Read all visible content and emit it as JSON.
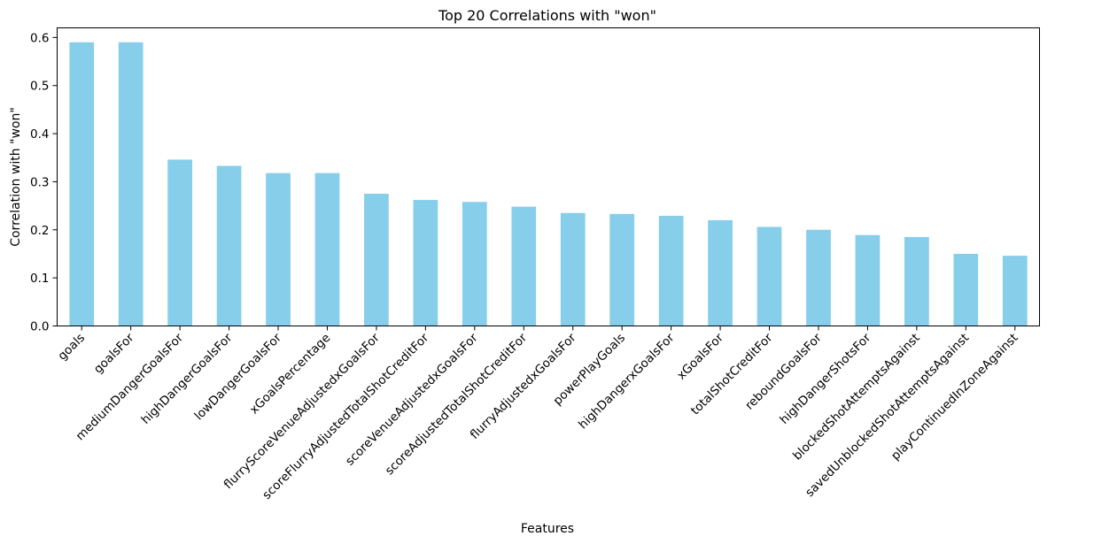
{
  "chart_data": {
    "type": "bar",
    "title": "Top 20 Correlations with \"won\"",
    "xlabel": "Features",
    "ylabel": "Correlation with \"won\"",
    "ylim": [
      0,
      0.62
    ],
    "yticks": [
      "0.0",
      "0.1",
      "0.2",
      "0.3",
      "0.4",
      "0.5",
      "0.6"
    ],
    "grid": false,
    "bar_color": "#87CEEB",
    "categories": [
      "goals",
      "goalsFor",
      "mediumDangerGoalsFor",
      "highDangerGoalsFor",
      "lowDangerGoalsFor",
      "xGoalsPercentage",
      "flurryScoreVenueAdjustedxGoalsFor",
      "scoreFlurryAdjustedTotalShotCreditFor",
      "scoreVenueAdjustedxGoalsFor",
      "scoreAdjustedTotalShotCreditFor",
      "flurryAdjustedxGoalsFor",
      "powerPlayGoals",
      "highDangerxGoalsFor",
      "xGoalsFor",
      "totalShotCreditFor",
      "reboundGoalsFor",
      "highDangerShotsFor",
      "blockedShotAttemptsAgainst",
      "savedUnblockedShotAttemptsAgainst",
      "playContinuedInZoneAgainst"
    ],
    "values": [
      0.59,
      0.59,
      0.346,
      0.333,
      0.318,
      0.318,
      0.275,
      0.262,
      0.258,
      0.248,
      0.235,
      0.233,
      0.229,
      0.22,
      0.206,
      0.2,
      0.189,
      0.185,
      0.15,
      0.146
    ]
  }
}
